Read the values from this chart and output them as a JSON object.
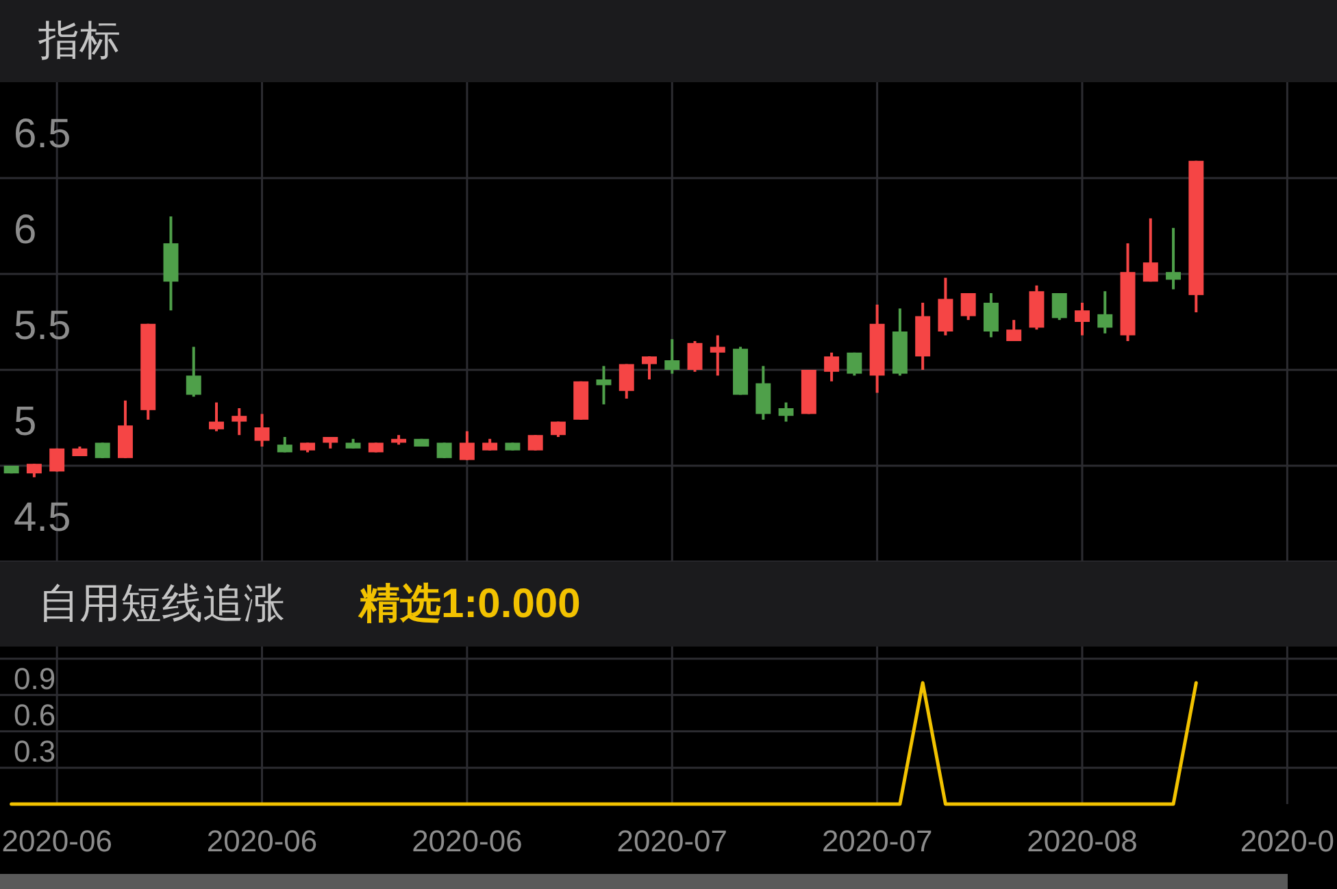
{
  "chart_data": [
    {
      "type": "candlestick",
      "title": "指标",
      "categories": [
        null,
        null,
        "2020-06",
        null,
        null,
        null,
        null,
        null,
        null,
        null,
        null,
        "2020-06",
        null,
        null,
        null,
        null,
        null,
        null,
        null,
        null,
        "2020-06",
        null,
        null,
        null,
        null,
        null,
        null,
        null,
        null,
        "2020-07",
        null,
        null,
        null,
        null,
        null,
        null,
        null,
        null,
        "2020-07",
        null,
        null,
        null,
        null,
        null,
        null,
        null,
        null,
        "2020-08",
        null,
        null,
        null,
        null,
        null,
        null,
        null,
        null,
        "2020-0"
      ],
      "ohlc": [
        [
          5.0,
          5.0,
          4.96,
          4.96
        ],
        [
          4.96,
          5.01,
          4.94,
          5.01
        ],
        [
          4.97,
          5.09,
          4.97,
          5.09
        ],
        [
          5.05,
          5.1,
          5.05,
          5.09
        ],
        [
          5.12,
          5.12,
          5.04,
          5.04
        ],
        [
          5.04,
          5.34,
          5.04,
          5.21
        ],
        [
          5.29,
          5.74,
          5.24,
          5.74
        ],
        [
          6.16,
          6.3,
          5.81,
          5.96
        ],
        [
          5.47,
          5.62,
          5.36,
          5.37
        ],
        [
          5.19,
          5.33,
          5.18,
          5.23
        ],
        [
          5.23,
          5.3,
          5.16,
          5.26
        ],
        [
          5.13,
          5.27,
          5.1,
          5.2
        ],
        [
          5.11,
          5.15,
          5.07,
          5.07
        ],
        [
          5.08,
          5.12,
          5.07,
          5.12
        ],
        [
          5.12,
          5.15,
          5.09,
          5.15
        ],
        [
          5.12,
          5.14,
          5.09,
          5.09
        ],
        [
          5.07,
          5.12,
          5.07,
          5.12
        ],
        [
          5.12,
          5.16,
          5.11,
          5.14
        ],
        [
          5.14,
          5.14,
          5.1,
          5.1
        ],
        [
          5.12,
          5.12,
          5.04,
          5.04
        ],
        [
          5.03,
          5.18,
          5.03,
          5.12
        ],
        [
          5.08,
          5.14,
          5.08,
          5.12
        ],
        [
          5.12,
          5.12,
          5.08,
          5.08
        ],
        [
          5.08,
          5.16,
          5.08,
          5.16
        ],
        [
          5.16,
          5.23,
          5.15,
          5.23
        ],
        [
          5.24,
          5.44,
          5.24,
          5.44
        ],
        [
          5.45,
          5.52,
          5.32,
          5.42
        ],
        [
          5.39,
          5.53,
          5.35,
          5.53
        ],
        [
          5.53,
          5.57,
          5.45,
          5.57
        ],
        [
          5.55,
          5.66,
          5.48,
          5.5
        ],
        [
          5.5,
          5.65,
          5.49,
          5.64
        ],
        [
          5.59,
          5.68,
          5.47,
          5.62
        ],
        [
          5.61,
          5.62,
          5.37,
          5.37
        ],
        [
          5.43,
          5.52,
          5.24,
          5.27
        ],
        [
          5.3,
          5.33,
          5.23,
          5.26
        ],
        [
          5.27,
          5.5,
          5.27,
          5.5
        ],
        [
          5.49,
          5.59,
          5.44,
          5.57
        ],
        [
          5.59,
          5.59,
          5.47,
          5.48
        ],
        [
          5.47,
          5.84,
          5.38,
          5.74
        ],
        [
          5.7,
          5.82,
          5.47,
          5.48
        ],
        [
          5.57,
          5.85,
          5.5,
          5.78
        ],
        [
          5.7,
          5.98,
          5.68,
          5.87
        ],
        [
          5.78,
          5.9,
          5.76,
          5.9
        ],
        [
          5.85,
          5.9,
          5.67,
          5.7
        ],
        [
          5.65,
          5.76,
          5.65,
          5.71
        ],
        [
          5.72,
          5.94,
          5.71,
          5.91
        ],
        [
          5.9,
          5.9,
          5.76,
          5.77
        ],
        [
          5.75,
          5.85,
          5.68,
          5.81
        ],
        [
          5.79,
          5.91,
          5.69,
          5.72
        ],
        [
          5.68,
          6.16,
          5.65,
          6.01
        ],
        [
          5.96,
          6.29,
          5.96,
          6.06
        ],
        [
          6.01,
          6.24,
          5.92,
          5.97
        ],
        [
          5.89,
          6.59,
          5.8,
          6.59
        ],
        null,
        null,
        null,
        null
      ],
      "colors": [
        "#4fa04a",
        "#f54545",
        "#f54545",
        "#f54545",
        "#4fa04a",
        "#f54545",
        "#f54545",
        "#4fa04a",
        "#4fa04a",
        "#f54545",
        "#f54545",
        "#f54545",
        "#4fa04a",
        "#f54545",
        "#f54545",
        "#4fa04a",
        "#f54545",
        "#f54545",
        "#4fa04a",
        "#4fa04a",
        "#f54545",
        "#f54545",
        "#4fa04a",
        "#f54545",
        "#f54545",
        "#f54545",
        "#4fa04a",
        "#f54545",
        "#f54545",
        "#4fa04a",
        "#f54545",
        "#f54545",
        "#4fa04a",
        "#4fa04a",
        "#4fa04a",
        "#f54545",
        "#f54545",
        "#4fa04a",
        "#f54545",
        "#4fa04a",
        "#f54545",
        "#f54545",
        "#f54545",
        "#4fa04a",
        "#f54545",
        "#f54545",
        "#4fa04a",
        "#f54545",
        "#4fa04a",
        "#f54545",
        "#f54545",
        "#4fa04a",
        "#f54545",
        null,
        null,
        null,
        null
      ],
      "ylim": [
        4.5,
        7.0
      ],
      "yticks": [
        4.5,
        5,
        5.5,
        6,
        6.5
      ],
      "grid": true,
      "tick_labels": "y"
    },
    {
      "type": "line",
      "title": "自用短线追涨",
      "categories": [
        null,
        null,
        "2020-06",
        null,
        null,
        null,
        null,
        null,
        null,
        null,
        null,
        "2020-06",
        null,
        null,
        null,
        null,
        null,
        null,
        null,
        null,
        "2020-06",
        null,
        null,
        null,
        null,
        null,
        null,
        null,
        null,
        "2020-07",
        null,
        null,
        null,
        null,
        null,
        null,
        null,
        null,
        "2020-07",
        null,
        null,
        null,
        null,
        null,
        null,
        null,
        null,
        "2020-08",
        null,
        null,
        null,
        null,
        null,
        null,
        null,
        null,
        "2020-0"
      ],
      "series": [
        {
          "name": "精选1:0.000",
          "color": "#f2c200",
          "values": [
            0,
            0,
            0,
            0,
            0,
            0,
            0,
            0,
            0,
            0,
            0,
            0,
            0,
            0,
            0,
            0,
            0,
            0,
            0,
            0,
            0,
            0,
            0,
            0,
            0,
            0,
            0,
            0,
            0,
            0,
            0,
            0,
            0,
            0,
            0,
            0,
            0,
            0,
            0,
            0,
            1,
            0,
            0,
            0,
            0,
            0,
            0,
            0,
            0,
            0,
            0,
            0,
            1,
            null,
            null,
            null,
            null
          ]
        }
      ],
      "ylim": [
        0,
        1.3
      ],
      "yticks": [
        0.3,
        0.6,
        0.9,
        {
          "value": 1.2,
          "label": null
        }
      ],
      "grid": true,
      "legend": "top left"
    }
  ]
}
